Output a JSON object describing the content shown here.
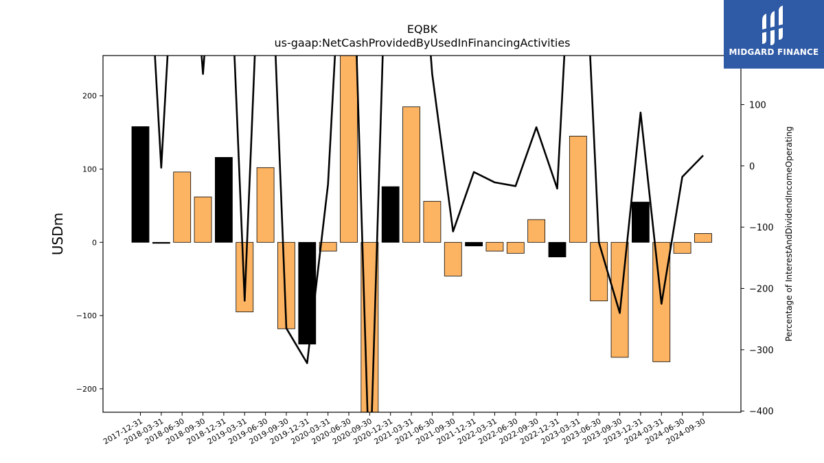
{
  "chart_data": {
    "type": "bar",
    "title": "EQBK",
    "subtitle": "us-gaap:NetCashProvidedByUsedInFinancingActivities",
    "ylabel": "USDm",
    "y2label": "Percentage of InterestAndDividendIncomeOperating",
    "categories": [
      "2017-12-31",
      "2018-03-31",
      "2018-06-30",
      "2018-09-30",
      "2018-12-31",
      "2019-03-31",
      "2019-06-30",
      "2019-09-30",
      "2019-12-31",
      "2020-03-31",
      "2020-06-30",
      "2020-09-30",
      "2020-12-31",
      "2021-03-31",
      "2021-06-30",
      "2021-09-30",
      "2021-12-31",
      "2022-03-31",
      "2022-06-30",
      "2022-09-30",
      "2022-12-31",
      "2023-03-31",
      "2023-06-30",
      "2023-09-30",
      "2023-12-31",
      "2024-03-31",
      "2024-06-30",
      "2024-09-30"
    ],
    "ylim": [
      -232,
      255
    ],
    "y2lim": [
      -402,
      180
    ],
    "yticks": [
      -200,
      -100,
      0,
      100,
      200
    ],
    "y2ticks": [
      -400,
      -300,
      -200,
      -100,
      0,
      100
    ],
    "series": [
      {
        "values": [
          158,
          -1,
          96,
          62,
          116,
          -95,
          102,
          -118,
          -139,
          -12,
          300,
          -280,
          76,
          185,
          56,
          -46,
          -5,
          -12,
          -15,
          31,
          -20,
          145,
          -80,
          -157,
          55,
          -163,
          -15,
          12
        ],
        "colors": [
          "#000000",
          "#000000",
          "#fdb462",
          "#fdb462",
          "#000000",
          "#fdb462",
          "#fdb462",
          "#fdb462",
          "#000000",
          "#fdb462",
          "#fdb462",
          "#fdb462",
          "#000000",
          "#fdb462",
          "#fdb462",
          "#fdb462",
          "#000000",
          "#fdb462",
          "#fdb462",
          "#fdb462",
          "#000000",
          "#fdb462",
          "#fdb462",
          "#fdb462",
          "#000000",
          "#fdb462",
          "#fdb462",
          "#fdb462"
        ]
      },
      {
        "type": "line",
        "axis": "right",
        "color": "#000000",
        "values": [
          600,
          -3,
          600,
          150,
          600,
          -220,
          600,
          -265,
          -322,
          -30,
          600,
          -520,
          600,
          600,
          150,
          -107,
          -10,
          -27,
          -33,
          63,
          -37,
          600,
          -125,
          -240,
          87,
          -225,
          -18,
          17
        ]
      }
    ]
  },
  "brand": {
    "name": "MIDGARD FINANCE",
    "color": "#2f5aa6"
  }
}
